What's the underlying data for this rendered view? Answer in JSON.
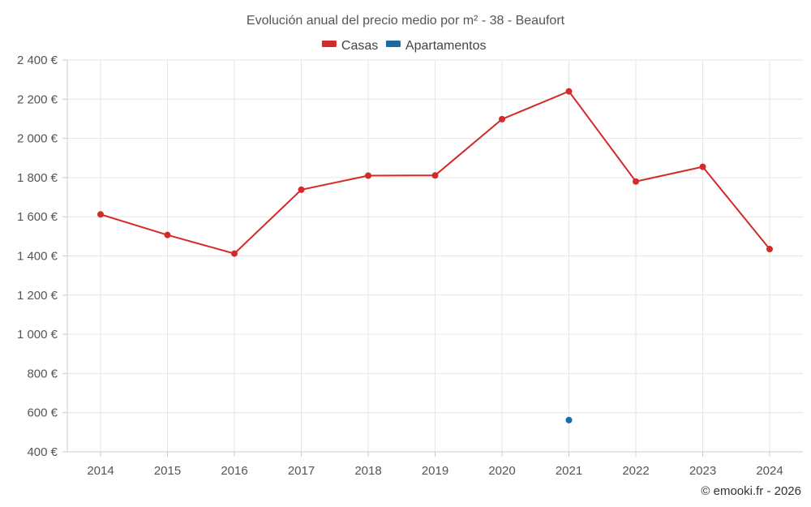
{
  "chart_data": {
    "type": "line",
    "title": "Evolución anual del precio medio por m² - 38 - Beaufort",
    "categories": [
      "2014",
      "2015",
      "2016",
      "2017",
      "2018",
      "2019",
      "2020",
      "2021",
      "2022",
      "2023",
      "2024"
    ],
    "y_ticks": [
      "400 €",
      "600 €",
      "800 €",
      "1 000 €",
      "1 200 €",
      "1 400 €",
      "1 600 €",
      "1 800 €",
      "2 000 €",
      "2 200 €",
      "2 400 €"
    ],
    "ylim": [
      400,
      2400
    ],
    "y_step": 200,
    "grid": true,
    "legend_position": "top-center",
    "series": [
      {
        "name": "Casas",
        "color": "#d32a2a",
        "values": [
          1612,
          1507,
          1412,
          1738,
          1810,
          1811,
          2098,
          2240,
          1780,
          1855,
          1435
        ]
      },
      {
        "name": "Apartamentos",
        "color": "#1b6aa5",
        "values": [
          null,
          null,
          null,
          null,
          null,
          null,
          null,
          562,
          null,
          null,
          null
        ]
      }
    ]
  },
  "credit": "© emooki.fr - 2026"
}
